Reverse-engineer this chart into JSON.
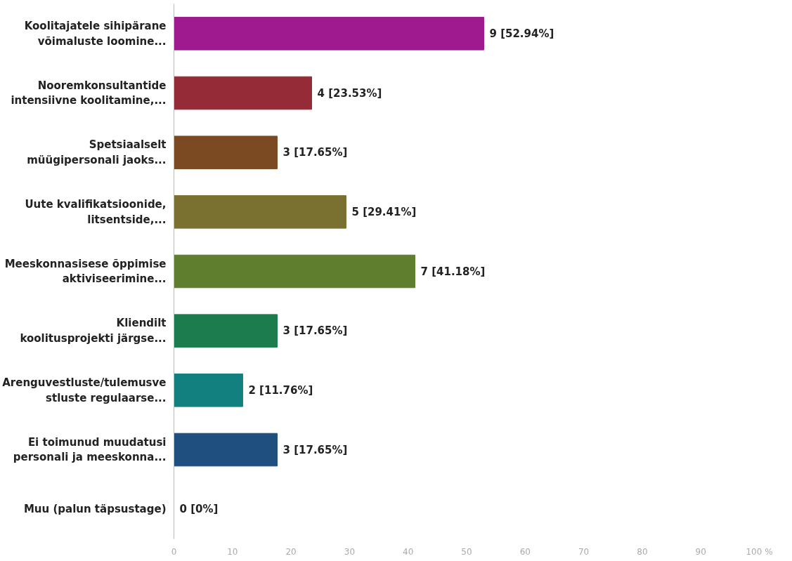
{
  "chart_data": {
    "type": "bar",
    "orientation": "horizontal",
    "categories": [
      "Koolitajatele sihipärane\nvõimaluste loomine...",
      "Nooremkonsultantide\nintensiivne koolitamine,...",
      "Spetsiaalselt\nmüügipersonali jaoks...",
      "Uute kvalifikatsioonide,\nlitsentside,...",
      "Meeskonnasisese õppimise\naktiviseerimine...",
      "Kliendilt\nkoolitusprojekti järgse...",
      "Arenguvestluste/tulemusve\nstluste regulaarse...",
      "Ei toimunud muudatusi\npersonali ja meeskonna...",
      "Muu (palun täpsustage)"
    ],
    "values": [
      52.94,
      23.53,
      17.65,
      29.41,
      41.18,
      17.65,
      11.76,
      17.65,
      0
    ],
    "colors": [
      "#9e1a8e",
      "#952b36",
      "#7b4a22",
      "#7a7131",
      "#5f7e2e",
      "#1d7c4e",
      "#12807f",
      "#1f4f7e",
      "#1f4f7e"
    ],
    "value_labels": [
      "9 [52.94%]",
      "4 [23.53%]",
      "3 [17.65%]",
      "5 [29.41%]",
      "7 [41.18%]",
      "3 [17.65%]",
      "2 [11.76%]",
      "3 [17.65%]",
      "0 [0%]"
    ],
    "xlim": [
      0,
      100
    ],
    "xticks": [
      0,
      10,
      20,
      30,
      40,
      50,
      60,
      70,
      80,
      90,
      {
        "value": 100,
        "label": "100 %"
      }
    ],
    "grid": false
  }
}
